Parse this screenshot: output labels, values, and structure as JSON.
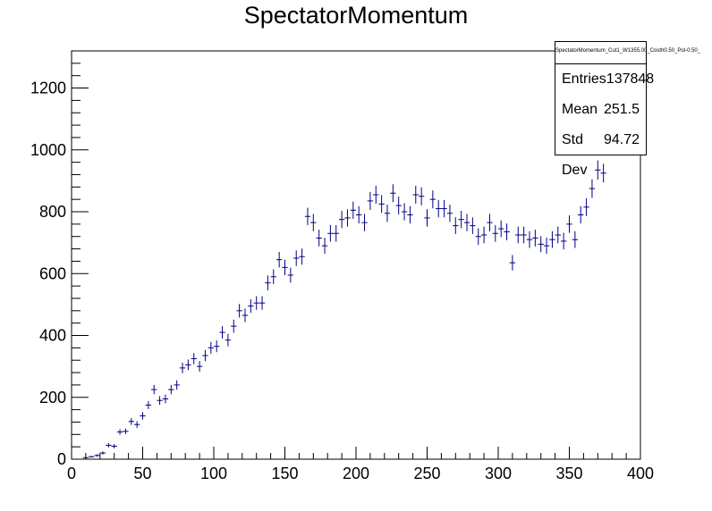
{
  "chart_data": {
    "type": "scatter",
    "title": "SpectatorMomentum",
    "xlabel": "",
    "ylabel": "",
    "xlim": [
      0,
      400
    ],
    "ylim": [
      0,
      1320
    ],
    "xticks": [
      0,
      50,
      100,
      150,
      200,
      250,
      300,
      350,
      400
    ],
    "yticks": [
      0,
      200,
      400,
      600,
      800,
      1000,
      1200
    ],
    "bin_width": 4,
    "series": [
      {
        "color": "#000080",
        "x": [
          10,
          14,
          18,
          22,
          26,
          30,
          34,
          38,
          42,
          46,
          50,
          54,
          58,
          62,
          66,
          70,
          74,
          78,
          82,
          86,
          90,
          94,
          98,
          102,
          106,
          110,
          114,
          118,
          122,
          126,
          130,
          134,
          138,
          142,
          146,
          150,
          154,
          158,
          162,
          166,
          170,
          174,
          178,
          182,
          186,
          190,
          194,
          198,
          202,
          206,
          210,
          214,
          218,
          222,
          226,
          230,
          234,
          238,
          242,
          246,
          250,
          254,
          258,
          262,
          266,
          270,
          274,
          278,
          282,
          286,
          290,
          294,
          298,
          302,
          306,
          310,
          314,
          318,
          322,
          326,
          330,
          334,
          338,
          342,
          346,
          350,
          354,
          358,
          362,
          366,
          370,
          374
        ],
        "y": [
          5,
          8,
          12,
          20,
          45,
          42,
          88,
          90,
          122,
          112,
          140,
          175,
          225,
          190,
          195,
          225,
          240,
          295,
          305,
          325,
          300,
          335,
          360,
          365,
          410,
          385,
          430,
          480,
          465,
          495,
          505,
          505,
          570,
          590,
          645,
          620,
          595,
          650,
          655,
          785,
          765,
          715,
          690,
          730,
          730,
          775,
          780,
          805,
          790,
          765,
          835,
          855,
          825,
          795,
          860,
          820,
          800,
          790,
          855,
          850,
          780,
          840,
          810,
          810,
          795,
          755,
          775,
          765,
          755,
          720,
          725,
          765,
          730,
          745,
          735,
          635,
          725,
          725,
          710,
          715,
          695,
          690,
          710,
          725,
          705,
          760,
          710,
          790,
          815,
          875,
          935,
          925
        ],
        "err": [
          2,
          3,
          4,
          5,
          7,
          7,
          9,
          9,
          11,
          11,
          12,
          13,
          15,
          14,
          14,
          15,
          15,
          17,
          17,
          18,
          17,
          18,
          19,
          19,
          20,
          20,
          21,
          22,
          22,
          22,
          22,
          22,
          24,
          24,
          25,
          25,
          24,
          25,
          26,
          28,
          28,
          27,
          26,
          27,
          27,
          28,
          28,
          28,
          28,
          28,
          29,
          29,
          29,
          28,
          29,
          29,
          28,
          28,
          29,
          29,
          28,
          29,
          28,
          28,
          28,
          27,
          28,
          28,
          27,
          27,
          27,
          28,
          27,
          27,
          27,
          25,
          27,
          27,
          27,
          27,
          26,
          26,
          27,
          27,
          27,
          28,
          27,
          28,
          29,
          30,
          31,
          30
        ]
      }
    ]
  },
  "stats": {
    "name": "SpectatorMomentum_Cut1_W1355.00_Costh0.50_Pol-0.50_",
    "entries_label": "Entries",
    "entries_value": "137848",
    "mean_label": "Mean",
    "mean_value": "251.5",
    "stddev_label": "Std Dev",
    "stddev_value": "94.72"
  }
}
